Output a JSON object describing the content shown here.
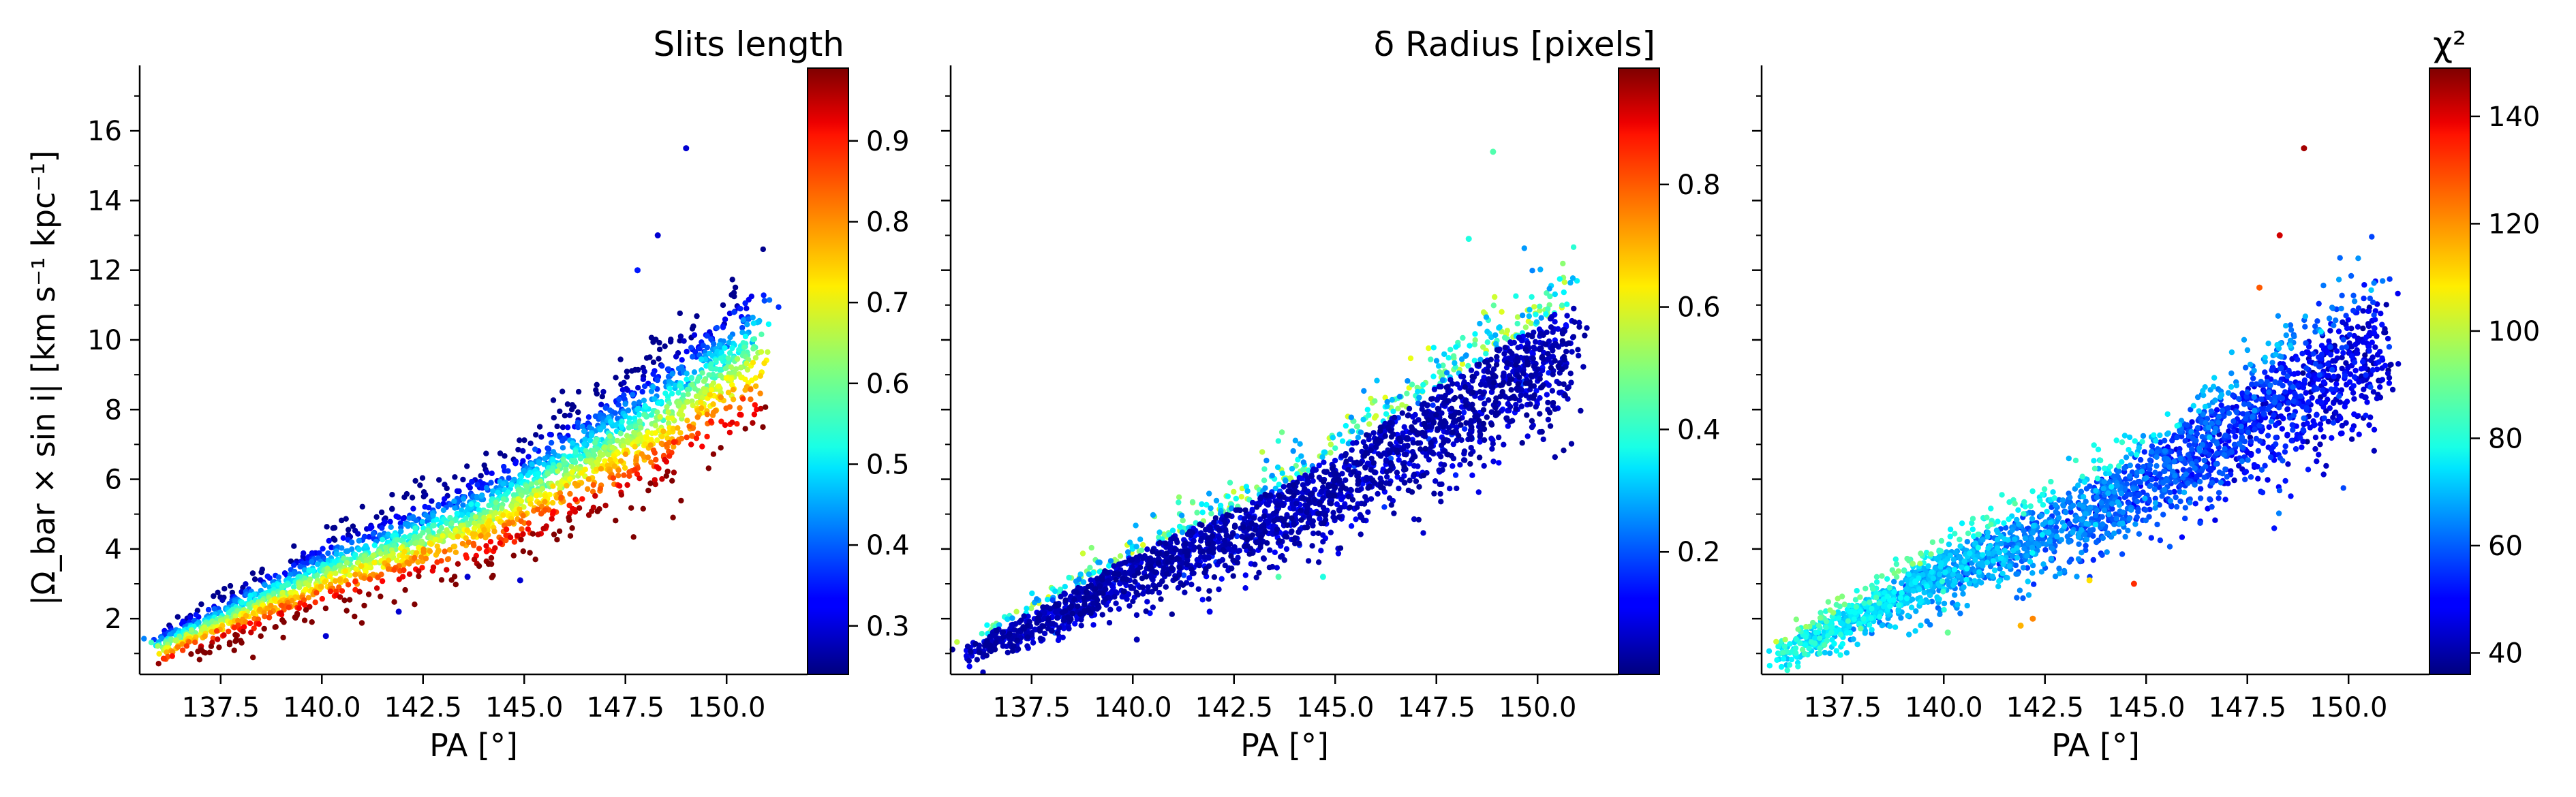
{
  "chart_data": [
    {
      "type": "scatter",
      "panel": "left",
      "xlabel": "PA [°]",
      "ylabel": "|Ω_bar × sin i|   [km s⁻¹ kpc⁻¹]",
      "xlim": [
        135.5,
        152.0
      ],
      "ylim": [
        0.4,
        17.8
      ],
      "x_ticks": [
        137.5,
        140.0,
        142.5,
        145.0,
        147.5,
        150.0
      ],
      "x_tick_labels": [
        "137.5",
        "140.0",
        "142.5",
        "145.0",
        "147.5",
        "150.0"
      ],
      "y_ticks": [
        2,
        4,
        6,
        8,
        10,
        12,
        14,
        16
      ],
      "y_tick_labels": [
        "2",
        "4",
        "6",
        "8",
        "10",
        "12",
        "14",
        "16"
      ],
      "colorbar": {
        "label": "Slits length",
        "colormap": "jet",
        "range": [
          0.24,
          0.99
        ],
        "ticks": [
          0.3,
          0.4,
          0.5,
          0.6,
          0.7,
          0.8,
          0.9
        ],
        "tick_labels": [
          "0.3",
          "0.4",
          "0.5",
          "0.6",
          "0.7",
          "0.8",
          "0.9"
        ]
      },
      "trend": {
        "description_points": [
          [
            136.0,
            1.2
          ],
          [
            140.0,
            3.3
          ],
          [
            144.0,
            5.0
          ],
          [
            148.0,
            7.6
          ],
          [
            151.0,
            10.0
          ]
        ],
        "color_gradient": "low values (blue/cyan) on upper edge, high values (red) on lower edge"
      },
      "outliers": [
        [
          149.0,
          15.5,
          0.3
        ],
        [
          148.3,
          13.0,
          0.3
        ],
        [
          147.8,
          12.0,
          0.35
        ],
        [
          140.1,
          1.5,
          0.3
        ],
        [
          141.9,
          2.2,
          0.3
        ],
        [
          143.6,
          3.2,
          0.3
        ],
        [
          144.9,
          3.1,
          0.3
        ]
      ]
    },
    {
      "type": "scatter",
      "panel": "middle",
      "xlabel": "PA [°]",
      "xlim": [
        135.5,
        152.0
      ],
      "ylim": [
        0.4,
        17.8
      ],
      "x_ticks": [
        137.5,
        140.0,
        142.5,
        145.0,
        147.5,
        150.0
      ],
      "x_tick_labels": [
        "137.5",
        "140.0",
        "142.5",
        "145.0",
        "147.5",
        "150.0"
      ],
      "colorbar": {
        "label": "δ Radius [pixels]",
        "colormap": "jet",
        "range": [
          0.0,
          0.99
        ],
        "ticks": [
          0.2,
          0.4,
          0.6,
          0.8
        ],
        "tick_labels": [
          "0.2",
          "0.4",
          "0.6",
          "0.8"
        ]
      },
      "trend": {
        "description_points": [
          [
            136.0,
            1.0
          ],
          [
            140.0,
            3.3
          ],
          [
            144.0,
            5.2
          ],
          [
            148.0,
            8.0
          ],
          [
            151.0,
            10.0
          ]
        ],
        "color_gradient": "mostly dark blue with cyan/green points on upper edge"
      },
      "outliers": [
        [
          148.9,
          15.4,
          0.45
        ],
        [
          148.3,
          12.9,
          0.4
        ],
        [
          140.1,
          1.4,
          0.05
        ],
        [
          143.6,
          3.2,
          0.45
        ],
        [
          144.7,
          3.2,
          0.4
        ],
        [
          141.9,
          2.2,
          0.1
        ]
      ]
    },
    {
      "type": "scatter",
      "panel": "right",
      "xlabel": "PA [°]",
      "xlim": [
        135.5,
        152.0
      ],
      "ylim": [
        0.4,
        17.8
      ],
      "x_ticks": [
        137.5,
        140.0,
        142.5,
        145.0,
        147.5,
        150.0
      ],
      "x_tick_labels": [
        "137.5",
        "140.0",
        "142.5",
        "145.0",
        "147.5",
        "150.0"
      ],
      "colorbar": {
        "label": "χ²",
        "colormap": "jet",
        "range": [
          36.0,
          149.0
        ],
        "ticks": [
          40,
          60,
          80,
          100,
          120,
          140
        ],
        "tick_labels": [
          "40",
          "60",
          "80",
          "100",
          "120",
          "140"
        ]
      },
      "trend": {
        "description_points": [
          [
            136.0,
            1.0
          ],
          [
            140.0,
            3.3
          ],
          [
            144.0,
            5.2
          ],
          [
            148.0,
            8.0
          ],
          [
            151.0,
            10.0
          ]
        ],
        "color_gradient": "cyan/light-blue at low PA, dark blue at high PA"
      },
      "outliers": [
        [
          148.9,
          15.5,
          145
        ],
        [
          148.3,
          13.0,
          140
        ],
        [
          147.8,
          11.5,
          125
        ],
        [
          140.1,
          1.6,
          90
        ],
        [
          141.9,
          1.8,
          115
        ],
        [
          142.2,
          2.0,
          120
        ],
        [
          143.6,
          3.1,
          110
        ],
        [
          144.7,
          3.0,
          130
        ]
      ]
    }
  ]
}
